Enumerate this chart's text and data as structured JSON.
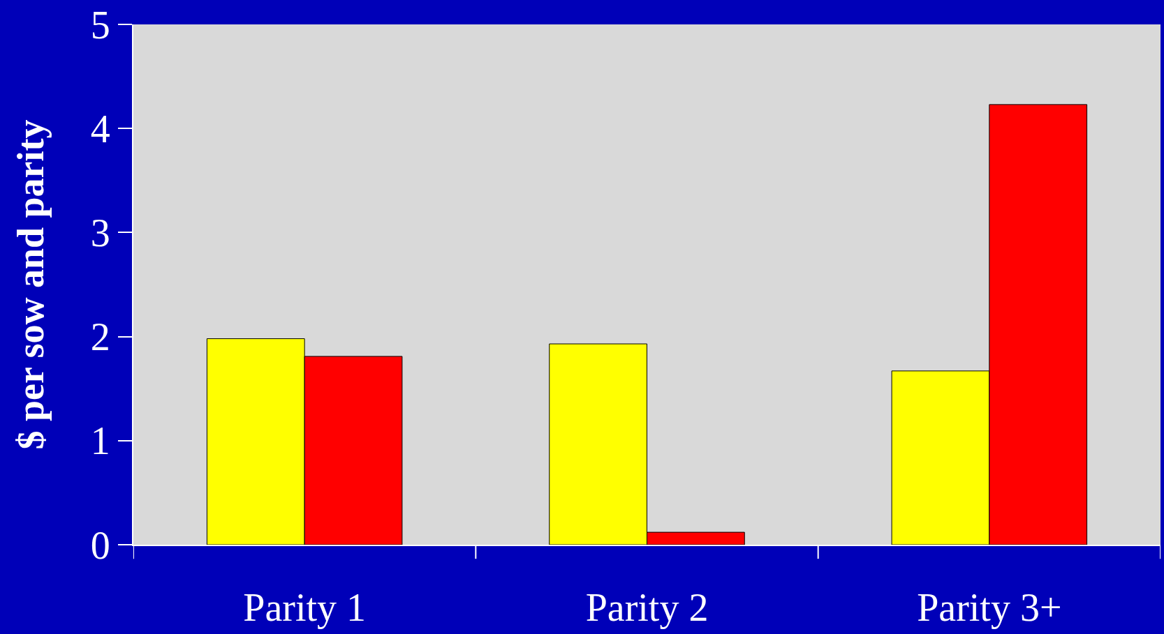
{
  "chart_data": {
    "type": "bar",
    "ylabel": "$ per sow and parity",
    "categories": [
      "Parity 1",
      "Parity 2",
      "Parity 3+"
    ],
    "series": [
      {
        "color": "#ffff00",
        "values": [
          1.98,
          1.93,
          1.67
        ]
      },
      {
        "color": "#ff0000",
        "values": [
          1.81,
          0.12,
          4.23
        ]
      }
    ],
    "ylim": [
      0,
      5
    ],
    "yticks": [
      0,
      1,
      2,
      3,
      4,
      5
    ],
    "grid": false
  }
}
